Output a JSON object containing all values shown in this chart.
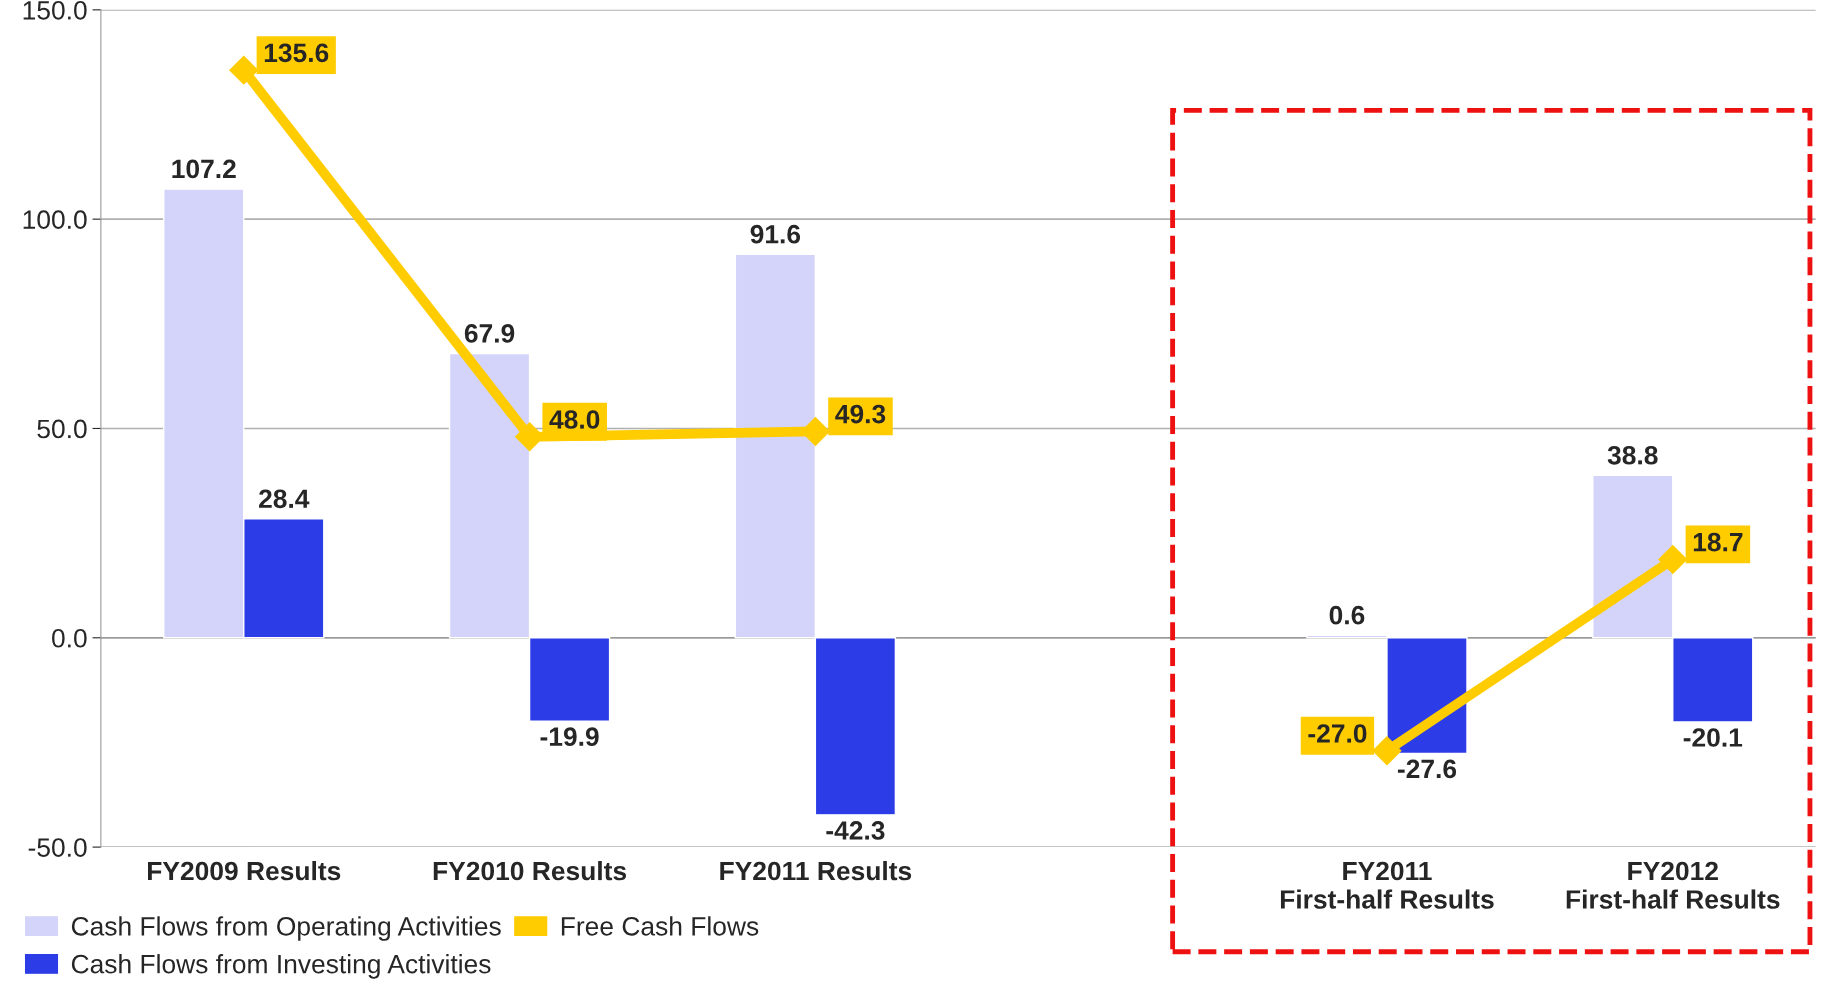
{
  "chart_data": {
    "type": "bar",
    "categories": [
      "FY2009 Results",
      "FY2010 Results",
      "FY2011 Results",
      null,
      "FY2011\nFirst-half Results",
      "FY2012\nFirst-half Results"
    ],
    "series": [
      {
        "name": "Cash Flows from Operating Activities",
        "color": "#d4d4fa",
        "values": [
          107.2,
          67.9,
          91.6,
          null,
          0.6,
          38.8
        ]
      },
      {
        "name": "Cash Flows from Investing Activities",
        "color": "#2c3ce6",
        "values": [
          28.4,
          -19.9,
          -42.3,
          null,
          -27.6,
          -20.1
        ]
      },
      {
        "name": "Free Cash Flows",
        "type": "line",
        "color": "#ffcc00",
        "marker": "diamond",
        "values": [
          135.6,
          48.0,
          49.3,
          null,
          -27.0,
          18.7
        ],
        "value_labels": [
          "135.6",
          "48.0",
          "49.3",
          null,
          "-27.0",
          "18.7"
        ]
      }
    ],
    "ylim": [
      -50.0,
      150.0
    ],
    "yticks": [
      {
        "value": -50,
        "label": "-50.0"
      },
      {
        "value": 0,
        "label": "0.0"
      },
      {
        "value": 50,
        "label": "50.0"
      },
      {
        "value": 100,
        "label": "100.0"
      },
      {
        "value": 150,
        "label": "150.0"
      }
    ],
    "grid": "y",
    "legend": "bottom",
    "data_labels": true
  }
}
